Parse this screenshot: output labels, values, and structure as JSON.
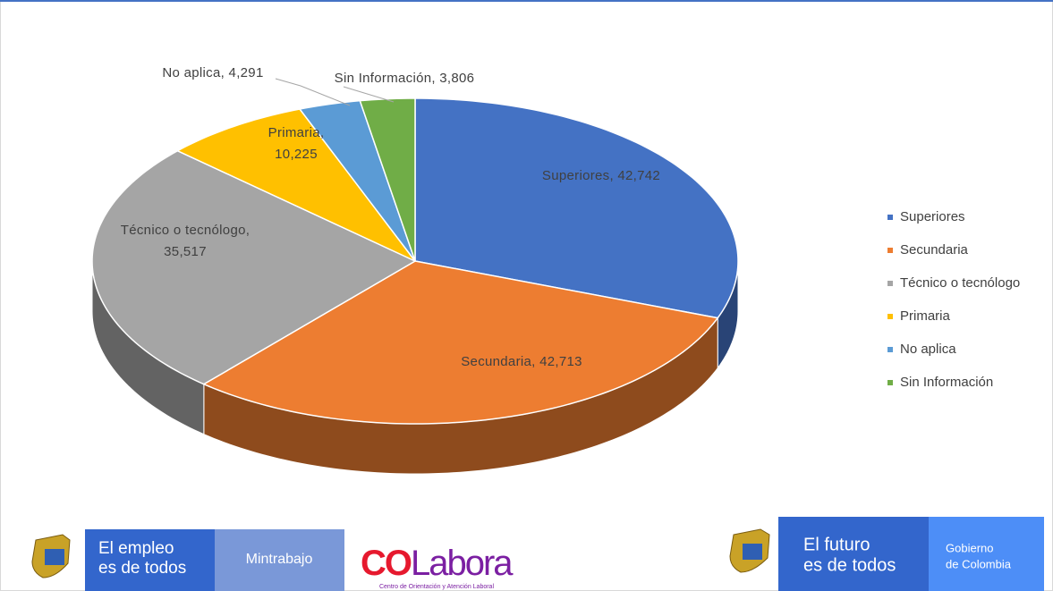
{
  "chart_data": {
    "type": "pie3d",
    "categories": [
      "Superiores",
      "Secundaria",
      "Técnico o tecnólogo",
      "Primaria",
      "No aplica",
      "Sin Información"
    ],
    "values": [
      42742,
      42713,
      35517,
      10225,
      4291,
      3806
    ],
    "value_labels": [
      "Superiores, 42,742",
      "Secundaria, 42,713",
      "Técnico o tecnólogo, 35,517",
      "Primaria, 10,225",
      "No aplica, 4,291",
      "Sin Información, 3,806"
    ],
    "colors": [
      "#4472c4",
      "#ed7d31",
      "#a5a5a5",
      "#ffc000",
      "#5b9bd5",
      "#70ad47"
    ],
    "legend": "right"
  },
  "footer": {
    "left_slogan_1": "El empleo",
    "left_slogan_2": "es de todos",
    "ministry": "Mintrabajo",
    "colabora_co": "CO",
    "colabora_rest": "Labora",
    "colabora_sub": "Centro de Orientación y Atención Laboral",
    "right_slogan_1": "El futuro",
    "right_slogan_2": "es de todos",
    "gov_1": "Gobierno",
    "gov_2": "de Colombia"
  }
}
